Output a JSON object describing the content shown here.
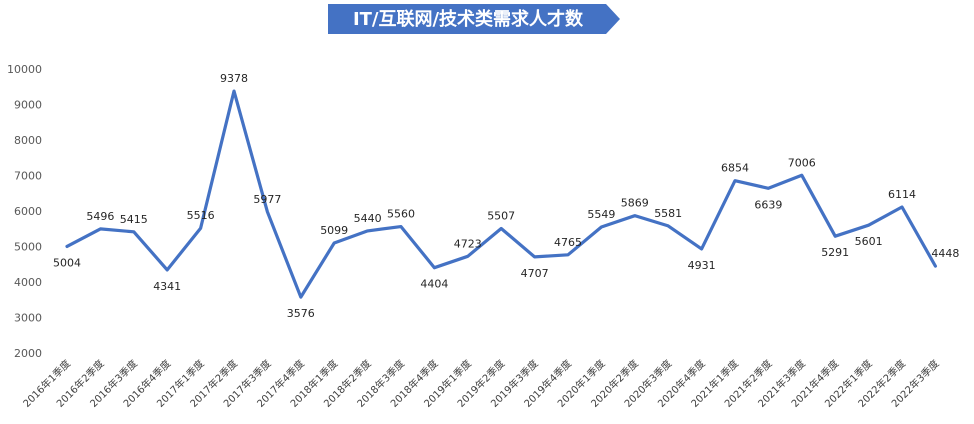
{
  "chart_data": {
    "type": "line",
    "title": "IT/互联网/技术类需求人才数",
    "xlabel": "",
    "ylabel": "",
    "ylim": [
      2000,
      10000
    ],
    "yticks": [
      2000,
      3000,
      4000,
      5000,
      6000,
      7000,
      8000,
      9000,
      10000
    ],
    "grid": false,
    "legend": "none",
    "line_color": "#4472c4",
    "title_banner_color": "#4472c4",
    "categories": [
      "2016年1季度",
      "2016年2季度",
      "2016年3季度",
      "2016年4季度",
      "2017年1季度",
      "2017年2季度",
      "2017年3季度",
      "2017年4季度",
      "2018年1季度",
      "2018年2季度",
      "2018年3季度",
      "2018年4季度",
      "2019年1季度",
      "2019年2季度",
      "2019年3季度",
      "2019年4季度",
      "2020年1季度",
      "2020年2季度",
      "2020年3季度",
      "2020年4季度",
      "2021年1季度",
      "2021年2季度",
      "2021年3季度",
      "2021年4季度",
      "2022年1季度",
      "2022年2季度",
      "2022年3季度"
    ],
    "values": [
      5004,
      5496,
      5415,
      4341,
      5516,
      9378,
      5977,
      3576,
      5099,
      5440,
      5560,
      4404,
      4723,
      5507,
      4707,
      4765,
      5549,
      5869,
      5581,
      4931,
      6854,
      6639,
      7006,
      5291,
      5601,
      6114,
      4448
    ]
  }
}
